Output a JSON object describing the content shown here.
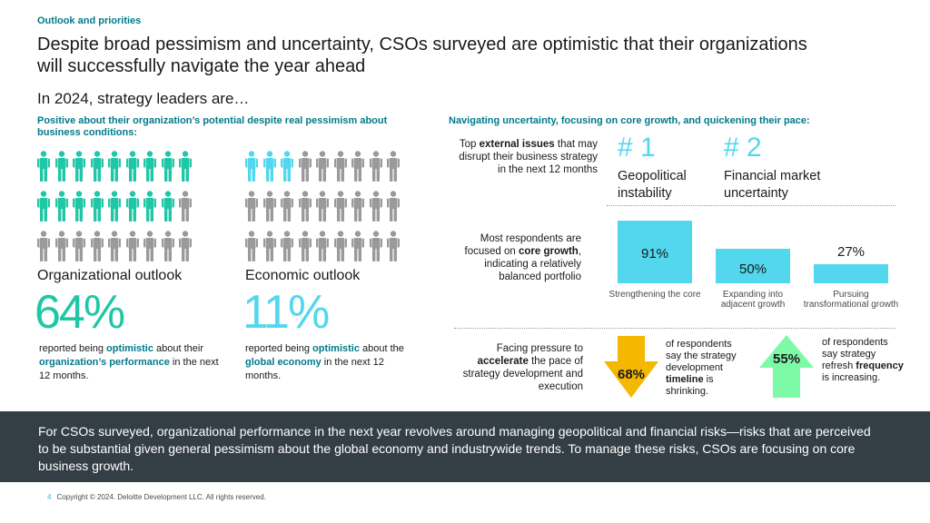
{
  "header": {
    "eyebrow": "Outlook and priorities",
    "headline": "Despite broad pessimism and uncertainty, CSOs surveyed are optimistic that their organizations will successfully navigate the year ahead",
    "intro": "In 2024, strategy leaders are…"
  },
  "left": {
    "subtitle": "Positive about their organization’s potential despite real pessimism about business conditions:",
    "organizational": {
      "title": "Organizational outlook",
      "percent": "64%",
      "icon_total": 27,
      "highlighted": 17,
      "highlight_color": "#1fc7a7",
      "caption_pre": "reported being ",
      "caption_em1": "optimistic",
      "caption_mid": " about their ",
      "caption_em2": "organization’s performance",
      "caption_post": " in the next 12 months."
    },
    "economic": {
      "title": "Economic outlook",
      "percent": "11%",
      "icon_total": 27,
      "highlighted": 3,
      "highlight_color": "#52d7ee",
      "caption_pre": "reported being ",
      "caption_em1": "optimistic",
      "caption_mid": " about the ",
      "caption_em2": "global economy",
      "caption_post": " in the next 12 months."
    },
    "muted_color": "#9a9a9a"
  },
  "right": {
    "subtitle": "Navigating uncertainty, focusing on core growth, and quickening their pace:",
    "issues": {
      "label_pre": "Top ",
      "label_em": "external issues",
      "label_post": " that may disrupt their business strategy in the next 12 months",
      "items": [
        {
          "rank": "# 1",
          "name": "Geopolitical instability"
        },
        {
          "rank": "# 2",
          "name": "Financial market uncertainty"
        }
      ]
    },
    "growth": {
      "label_pre": "Most respondents are focused on ",
      "label_em": "core growth",
      "label_post": ", indicating a relatively balanced portfolio"
    },
    "pace": {
      "label_pre": "Facing pressure to ",
      "label_em": "accelerate",
      "label_post": " the pace of strategy development and execution",
      "down": {
        "value": "68%",
        "color": "#f5b800",
        "text_pre": "of respondents say the strategy development ",
        "text_em": "timeline",
        "text_post": " is shrinking."
      },
      "up": {
        "value": "55%",
        "color": "#7dfaa6",
        "text_pre": "of respondents say strategy refresh ",
        "text_em": "frequency",
        "text_post": " is increasing."
      }
    }
  },
  "chart_data": {
    "type": "bar",
    "categories": [
      "Strengthening the core",
      "Expanding into adjacent growth",
      "Pursuing transformational growth"
    ],
    "values": [
      91,
      50,
      27
    ],
    "labels": [
      "91%",
      "50%",
      "27%"
    ],
    "ylim": [
      0,
      100
    ],
    "title": "",
    "xlabel": "",
    "ylabel": ""
  },
  "banner": {
    "text": "For CSOs surveyed, organizational performance in the next year revolves around managing geopolitical and financial risks—risks that are perceived to be substantial given general pessimism about the global economy and industrywide trends. To manage these risks, CSOs are focusing on core business growth."
  },
  "footer": {
    "page": "4",
    "copyright": "Copyright © 2024. Deloitte Development LLC. All rights reserved."
  }
}
